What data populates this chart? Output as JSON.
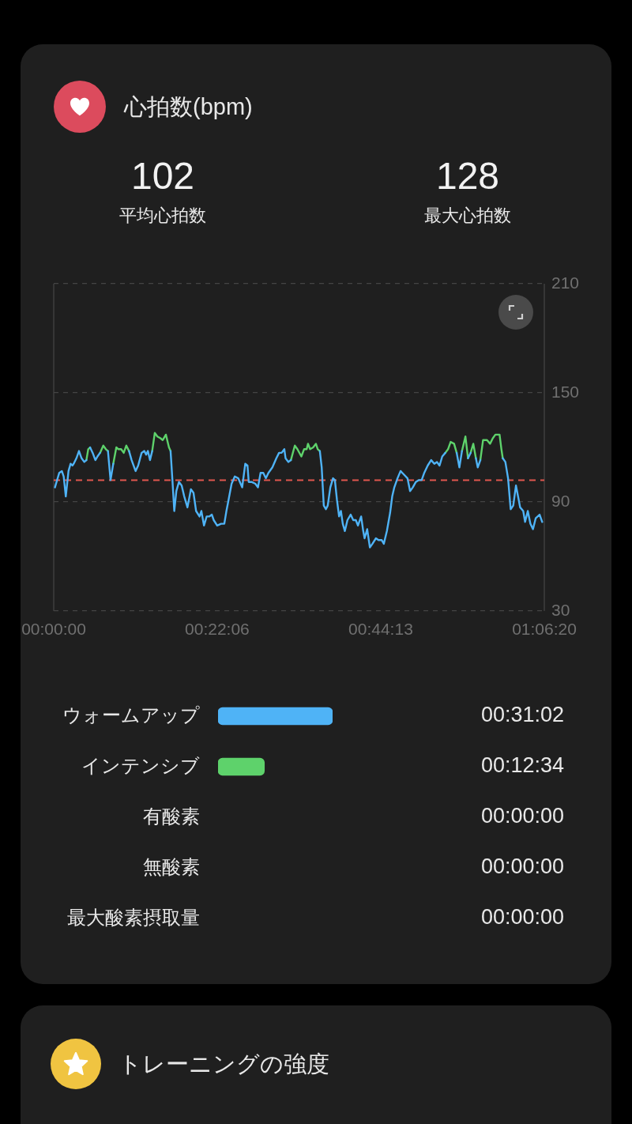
{
  "chart_data": [
    {
      "type": "line",
      "title": "心拍数(bpm)",
      "annotations": [
        "102",
        "平均心拍数",
        "128",
        "最大心拍数"
      ],
      "x": [
        10,
        45,
        66,
        81,
        98,
        120,
        137,
        152,
        162,
        184,
        205,
        226,
        248,
        265,
        280,
        295,
        316,
        338,
        355,
        376,
        402,
        423,
        440,
        461,
        483,
        508,
        525,
        547,
        568,
        589,
        611,
        632,
        664,
        685,
        713,
        735,
        750,
        764,
        781,
        799,
        820,
        841,
        867,
        884,
        910,
        935,
        948,
        963,
        978,
        995,
        1016,
        1038,
        1059,
        1085,
        1113,
        1134,
        1155,
        1183,
        1198,
        1219,
        1241,
        1262,
        1283,
        1298,
        1326,
        1358,
        1384,
        1401,
        1418,
        1443,
        1469,
        1497,
        1529,
        1554,
        1572,
        1582,
        1604,
        1636,
        1657,
        1678,
        1700,
        1721,
        1742,
        1774,
        1806,
        1828,
        1849,
        1871,
        1881,
        1903,
        1924,
        1956,
        1977,
        2009,
        2031,
        2052,
        2063,
        2080,
        2105,
        2127,
        2142,
        2159,
        2174,
        2191,
        2208,
        2223,
        2244,
        2266,
        2281,
        2298,
        2315,
        2330,
        2345,
        2362,
        2383,
        2409,
        2430,
        2451,
        2468,
        2494,
        2511,
        2522,
        2543,
        2565,
        2586,
        2614,
        2635,
        2661,
        2678,
        2703,
        2729,
        2746,
        2763,
        2789,
        2814,
        2842,
        2870,
        2891,
        2913,
        2938,
        2960,
        2985,
        3006,
        3034,
        3062,
        3088,
        3109,
        3130,
        3152,
        3177,
        3199,
        3220,
        3248,
        3269,
        3291,
        3312,
        3340,
        3361,
        3382,
        3404,
        3425,
        3440,
        3461,
        3483,
        3515,
        3540,
        3562,
        3583,
        3604,
        3617,
        3632,
        3643,
        3664,
        3686,
        3707,
        3728,
        3750,
        3767,
        3784,
        3809,
        3824,
        3846,
        3867,
        3888,
        3910,
        3942,
        3963
      ],
      "series": [
        {
          "color": "#4fb3f6",
          "values": [
            98,
            106,
            107,
            104,
            93,
            107,
            111,
            110,
            111,
            114,
            118,
            114,
            112,
            113,
            null,
            120,
            117,
            113,
            115,
            117,
            null,
            null,
            118,
            102,
            111,
            null,
            null,
            null,
            null,
            null,
            118,
            113,
            107,
            110,
            117,
            118,
            116,
            118,
            113,
            118,
            null,
            null,
            null,
            null,
            null,
            null,
            118,
            102,
            85,
            96,
            101,
            99,
            93,
            87,
            97,
            95,
            85,
            82,
            85,
            77,
            82,
            82,
            83,
            80,
            77,
            78,
            78,
            85,
            91,
            100,
            104,
            103,
            98,
            111,
            110,
            101,
            101,
            100,
            98,
            106,
            106,
            103,
            106,
            109,
            114,
            117,
            117,
            119,
            114,
            112,
            113,
            null,
            null,
            null,
            null,
            null,
            null,
            null,
            null,
            null,
            null,
            118,
            109,
            88,
            86,
            88,
            98,
            103,
            102,
            91,
            82,
            85,
            78,
            74,
            80,
            83,
            80,
            80,
            77,
            82,
            74,
            70,
            75,
            65,
            67,
            70,
            69,
            69,
            67,
            74,
            84,
            93,
            98,
            103,
            107,
            105,
            103,
            96,
            98,
            101,
            102,
            102,
            106,
            110,
            113,
            111,
            112,
            110,
            115,
            117,
            null,
            null,
            null,
            117,
            109,
            118,
            null,
            114,
            117,
            null,
            114,
            109,
            113,
            null,
            null,
            null,
            null,
            null,
            null,
            null,
            null,
            114,
            112,
            103,
            86,
            88,
            99,
            93,
            87,
            85,
            79,
            85,
            78,
            75,
            81,
            83,
            79
          ]
        },
        {
          "color": "#5ed26b",
          "x": [
            265,
            280,
            295,
            340,
            376,
            402,
            423,
            440,
            462,
            483,
            508,
            525,
            547,
            568,
            589,
            611,
            700,
            799,
            820,
            841,
            867,
            884,
            910,
            935,
            948,
            1400,
            1924,
            1956,
            1977,
            2009,
            2031,
            2052,
            2063,
            2080,
            2105,
            2127,
            2142,
            2159,
            2700,
            3177,
            3199,
            3220,
            3248,
            3269,
            3290,
            3312,
            3340,
            3361,
            3372,
            3382,
            3404,
            3425,
            3450,
            3461,
            3483,
            3515,
            3540,
            3562,
            3583,
            3604,
            3617,
            3632,
            3643
          ],
          "values": [
            113,
            119,
            120,
            null,
            117,
            121,
            119,
            118,
            null,
            111,
            120,
            119,
            119,
            117,
            121,
            118,
            null,
            118,
            128,
            126,
            125,
            124,
            127,
            120,
            118,
            null,
            113,
            121,
            119,
            115,
            119,
            119,
            122,
            119,
            120,
            122,
            119,
            118,
            null,
            117,
            119,
            123,
            122,
            117,
            null,
            118,
            126,
            114,
            null,
            117,
            122,
            114,
            null,
            113,
            124,
            124,
            122,
            125,
            127,
            127,
            127,
            119,
            114
          ]
        }
      ],
      "xlim": [
        0,
        3980
      ],
      "xticks": [
        {
          "value": 0,
          "label": "00:00:00"
        },
        {
          "value": 1326,
          "label": "00:22:06"
        },
        {
          "value": 2653,
          "label": "00:44:13"
        },
        {
          "value": 3980,
          "label": "01:06:20"
        }
      ],
      "ylim": [
        30,
        210
      ],
      "yticks": [
        30,
        90,
        150,
        210
      ],
      "grid": "y",
      "ref_lines": [
        {
          "axis": "y",
          "value": 102,
          "color": "#e0574f",
          "line_style": "dashed"
        }
      ]
    },
    {
      "type": "bar",
      "orientation": "horizontal",
      "categories": [
        "ウォームアップ",
        "インテンシブ",
        "有酸素",
        "無酸素",
        "最大酸素摂取量"
      ],
      "values": [
        1862,
        754,
        0,
        0,
        0
      ],
      "colors": [
        "#4fb3f6",
        "#5ed26b",
        null,
        null,
        null
      ],
      "value_labels": [
        "00:31:02",
        "00:12:34",
        "00:00:00",
        "00:00:00",
        "00:00:00"
      ],
      "tick_labels": "y"
    },
    {
      "type": "other",
      "title": "トレーニングの強度"
    }
  ]
}
